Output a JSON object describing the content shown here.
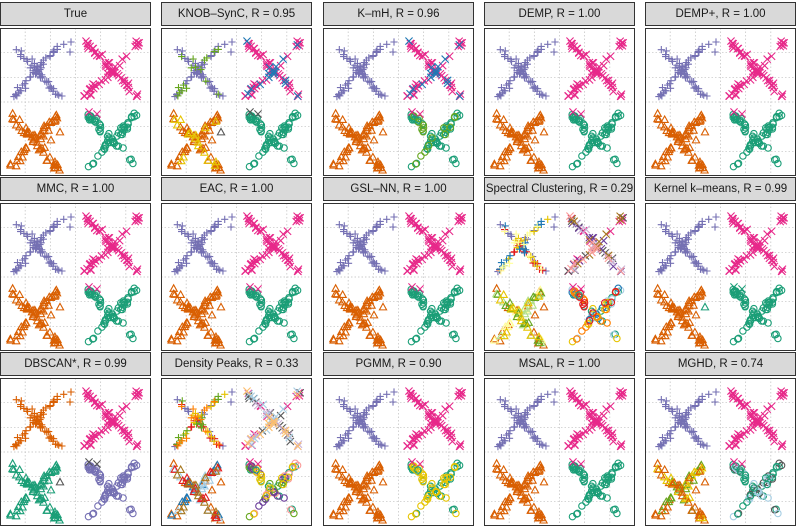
{
  "colors": {
    "purple": "#7570b3",
    "magenta": "#e7298a",
    "orange": "#d95f02",
    "teal": "#1b9e77",
    "gray": "#555555",
    "yellow": "#e6c400",
    "green": "#66a61e",
    "blue": "#1f78b4",
    "red": "#e31a1c",
    "pink": "#fb9a99",
    "lightgreen": "#b2df8a",
    "lightblue": "#a6cee3",
    "lightyellow": "#ffff99",
    "darkpurple": "#6a3d9a",
    "lightpurple": "#cab2d6",
    "lightorange": "#fdbf6f",
    "brown": "#a6761d",
    "darkorange": "#ff7f00"
  },
  "chart_data": [
    {
      "type": "scatter",
      "title": "True",
      "layout": "true"
    },
    {
      "type": "scatter",
      "title": "KNOB–SynC, R = 0.95",
      "layout": "knob"
    },
    {
      "type": "scatter",
      "title": "K–mH, R = 0.96",
      "layout": "kmh"
    },
    {
      "type": "scatter",
      "title": "DEMP, R = 1.00",
      "layout": "true"
    },
    {
      "type": "scatter",
      "title": "DEMP+, R = 1.00",
      "layout": "true"
    },
    {
      "type": "scatter",
      "title": "MMC, R = 1.00",
      "layout": "true"
    },
    {
      "type": "scatter",
      "title": "EAC, R = 1.00",
      "layout": "true"
    },
    {
      "type": "scatter",
      "title": "GSL–NN, R = 1.00",
      "layout": "true"
    },
    {
      "type": "scatter",
      "title": "Spectral Clustering, R = 0.29",
      "layout": "spectral"
    },
    {
      "type": "scatter",
      "title": "Kernel k–means, R = 0.99",
      "layout": "kkm"
    },
    {
      "type": "scatter",
      "title": "DBSCAN*, R = 0.99",
      "layout": "dbscan"
    },
    {
      "type": "scatter",
      "title": "Density Peaks, R = 0.33",
      "layout": "dp"
    },
    {
      "type": "scatter",
      "title": "PGMM, R = 0.90",
      "layout": "pgmm"
    },
    {
      "type": "scatter",
      "title": "MSAL, R = 1.00",
      "layout": "msal"
    },
    {
      "type": "scatter",
      "title": "MGHD, R = 0.74",
      "layout": "mghd"
    }
  ]
}
